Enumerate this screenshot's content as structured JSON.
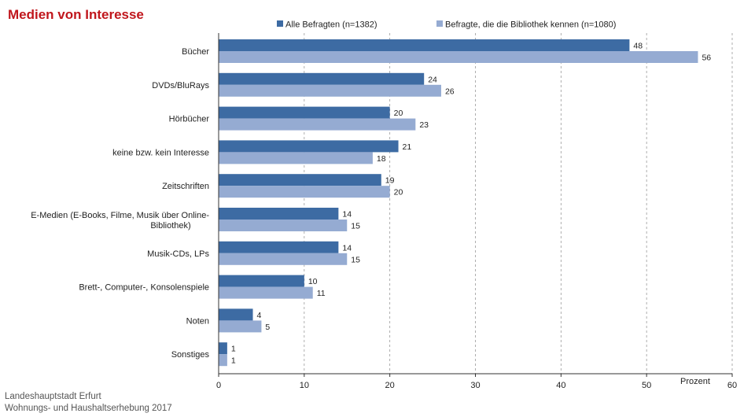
{
  "chart_data": {
    "type": "bar",
    "orientation": "horizontal",
    "title": "Medien von Interesse",
    "categories": [
      [
        "Bücher"
      ],
      [
        "DVDs/BluRays"
      ],
      [
        "Hörbücher"
      ],
      [
        "keine bzw. kein Interesse"
      ],
      [
        "Zeitschriften"
      ],
      [
        "E-Medien (E-Books, Filme, Musik über Online-",
        "Bibliothek)"
      ],
      [
        "Musik-CDs, LPs"
      ],
      [
        "Brett-, Computer-, Konsolenspiele"
      ],
      [
        "Noten"
      ],
      [
        "Sonstiges"
      ]
    ],
    "series": [
      {
        "name": "Alle Befragten (n=1382)",
        "color": "#3d6ba3",
        "values": [
          48,
          24,
          20,
          21,
          19,
          14,
          14,
          10,
          4,
          1
        ]
      },
      {
        "name": "Befragte, die die Bibliothek kennen (n=1080)",
        "color": "#95abd2",
        "values": [
          56,
          26,
          23,
          18,
          20,
          15,
          15,
          11,
          5,
          1
        ]
      }
    ],
    "xlabel": "Prozent",
    "xlim": [
      0,
      60
    ],
    "xticks": [
      0,
      10,
      20,
      30,
      40,
      50,
      60
    ],
    "grid": "vertical dashed",
    "legend": "top"
  },
  "footer": {
    "line1": "Landeshauptstadt Erfurt",
    "line2": "Wohnungs- und Haushaltserhebung 2017"
  }
}
